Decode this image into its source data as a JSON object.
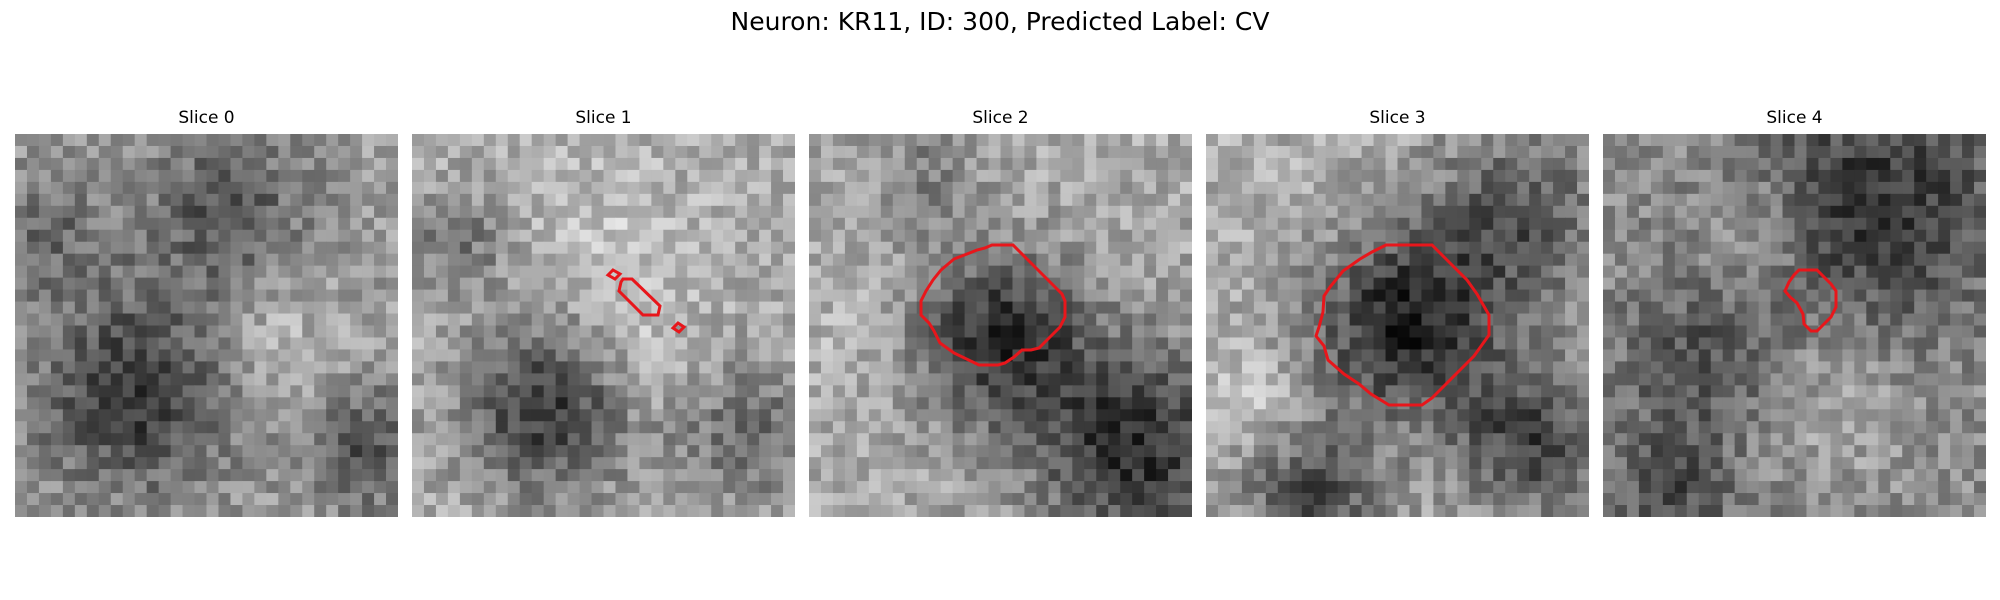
{
  "figure": {
    "title": "Neuron: KR11, ID: 300, Predicted Label: CV"
  },
  "slices": [
    {
      "title": "Slice 0",
      "seed": 11
    },
    {
      "title": "Slice 1",
      "seed": 23
    },
    {
      "title": "Slice 2",
      "seed": 37
    },
    {
      "title": "Slice 3",
      "seed": 41
    },
    {
      "title": "Slice 4",
      "seed": 59
    }
  ],
  "colors": {
    "contour": "#e8161b"
  }
}
